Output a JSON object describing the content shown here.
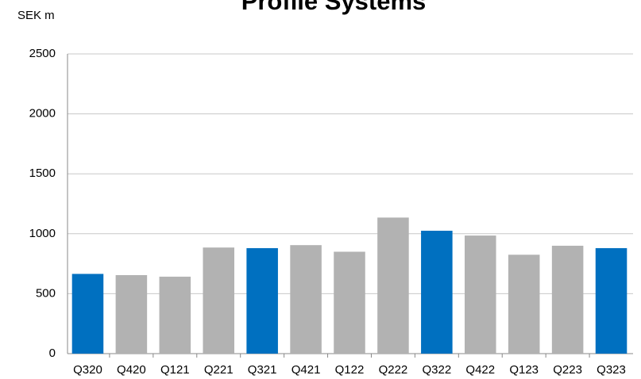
{
  "chart_data": {
    "type": "bar",
    "title": "Profile Systems",
    "ylabel": "SEK m",
    "categories": [
      "Q320",
      "Q420",
      "Q121",
      "Q221",
      "Q321",
      "Q421",
      "Q122",
      "Q222",
      "Q322",
      "Q422",
      "Q123",
      "Q223",
      "Q323"
    ],
    "values": [
      665,
      655,
      642,
      885,
      880,
      905,
      850,
      1135,
      1025,
      985,
      825,
      900,
      880
    ],
    "colors": [
      "#0070c0",
      "#b2b2b2",
      "#b2b2b2",
      "#b2b2b2",
      "#0070c0",
      "#b2b2b2",
      "#b2b2b2",
      "#b2b2b2",
      "#0070c0",
      "#b2b2b2",
      "#b2b2b2",
      "#b2b2b2",
      "#0070c0"
    ],
    "ylim": [
      0,
      2500
    ],
    "yticks": [
      0,
      500,
      1000,
      1500,
      2000,
      2500
    ],
    "grid": true
  }
}
